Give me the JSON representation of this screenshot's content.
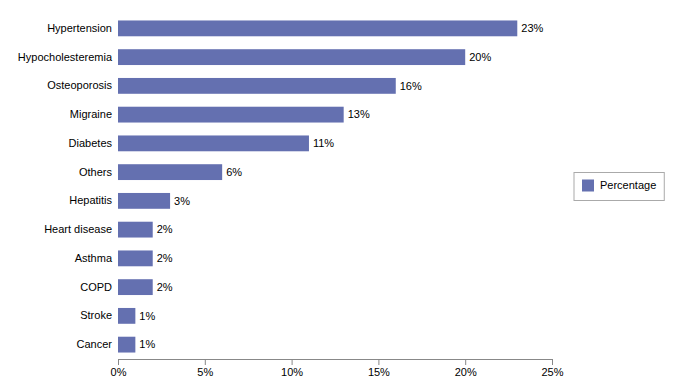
{
  "chart_data": {
    "type": "bar",
    "orientation": "horizontal",
    "categories": [
      "Hypertension",
      "Hypocholesteremia",
      "Osteoporosis",
      "Migraine",
      "Diabetes",
      "Others",
      "Hepatitis",
      "Heart disease",
      "Asthma",
      "COPD",
      "Stroke",
      "Cancer"
    ],
    "series": [
      {
        "name": "Percentage",
        "color": "#6470b0",
        "values": [
          23,
          20,
          16,
          13,
          11,
          6,
          3,
          2,
          2,
          2,
          1,
          1
        ],
        "value_labels": [
          "23%",
          "20%",
          "16%",
          "13%",
          "11%",
          "6%",
          "3%",
          "2%",
          "2%",
          "2%",
          "1%",
          "1%"
        ]
      }
    ],
    "xlim": [
      0,
      25
    ],
    "xticks": [
      {
        "value": 0,
        "label": "0%"
      },
      {
        "value": 5,
        "label": "5%"
      },
      {
        "value": 10,
        "label": "10%"
      },
      {
        "value": 15,
        "label": "15%"
      },
      {
        "value": 20,
        "label": "20%"
      },
      {
        "value": 25,
        "label": "25%"
      }
    ],
    "grid": false,
    "legend": "right",
    "data_labels": true
  }
}
